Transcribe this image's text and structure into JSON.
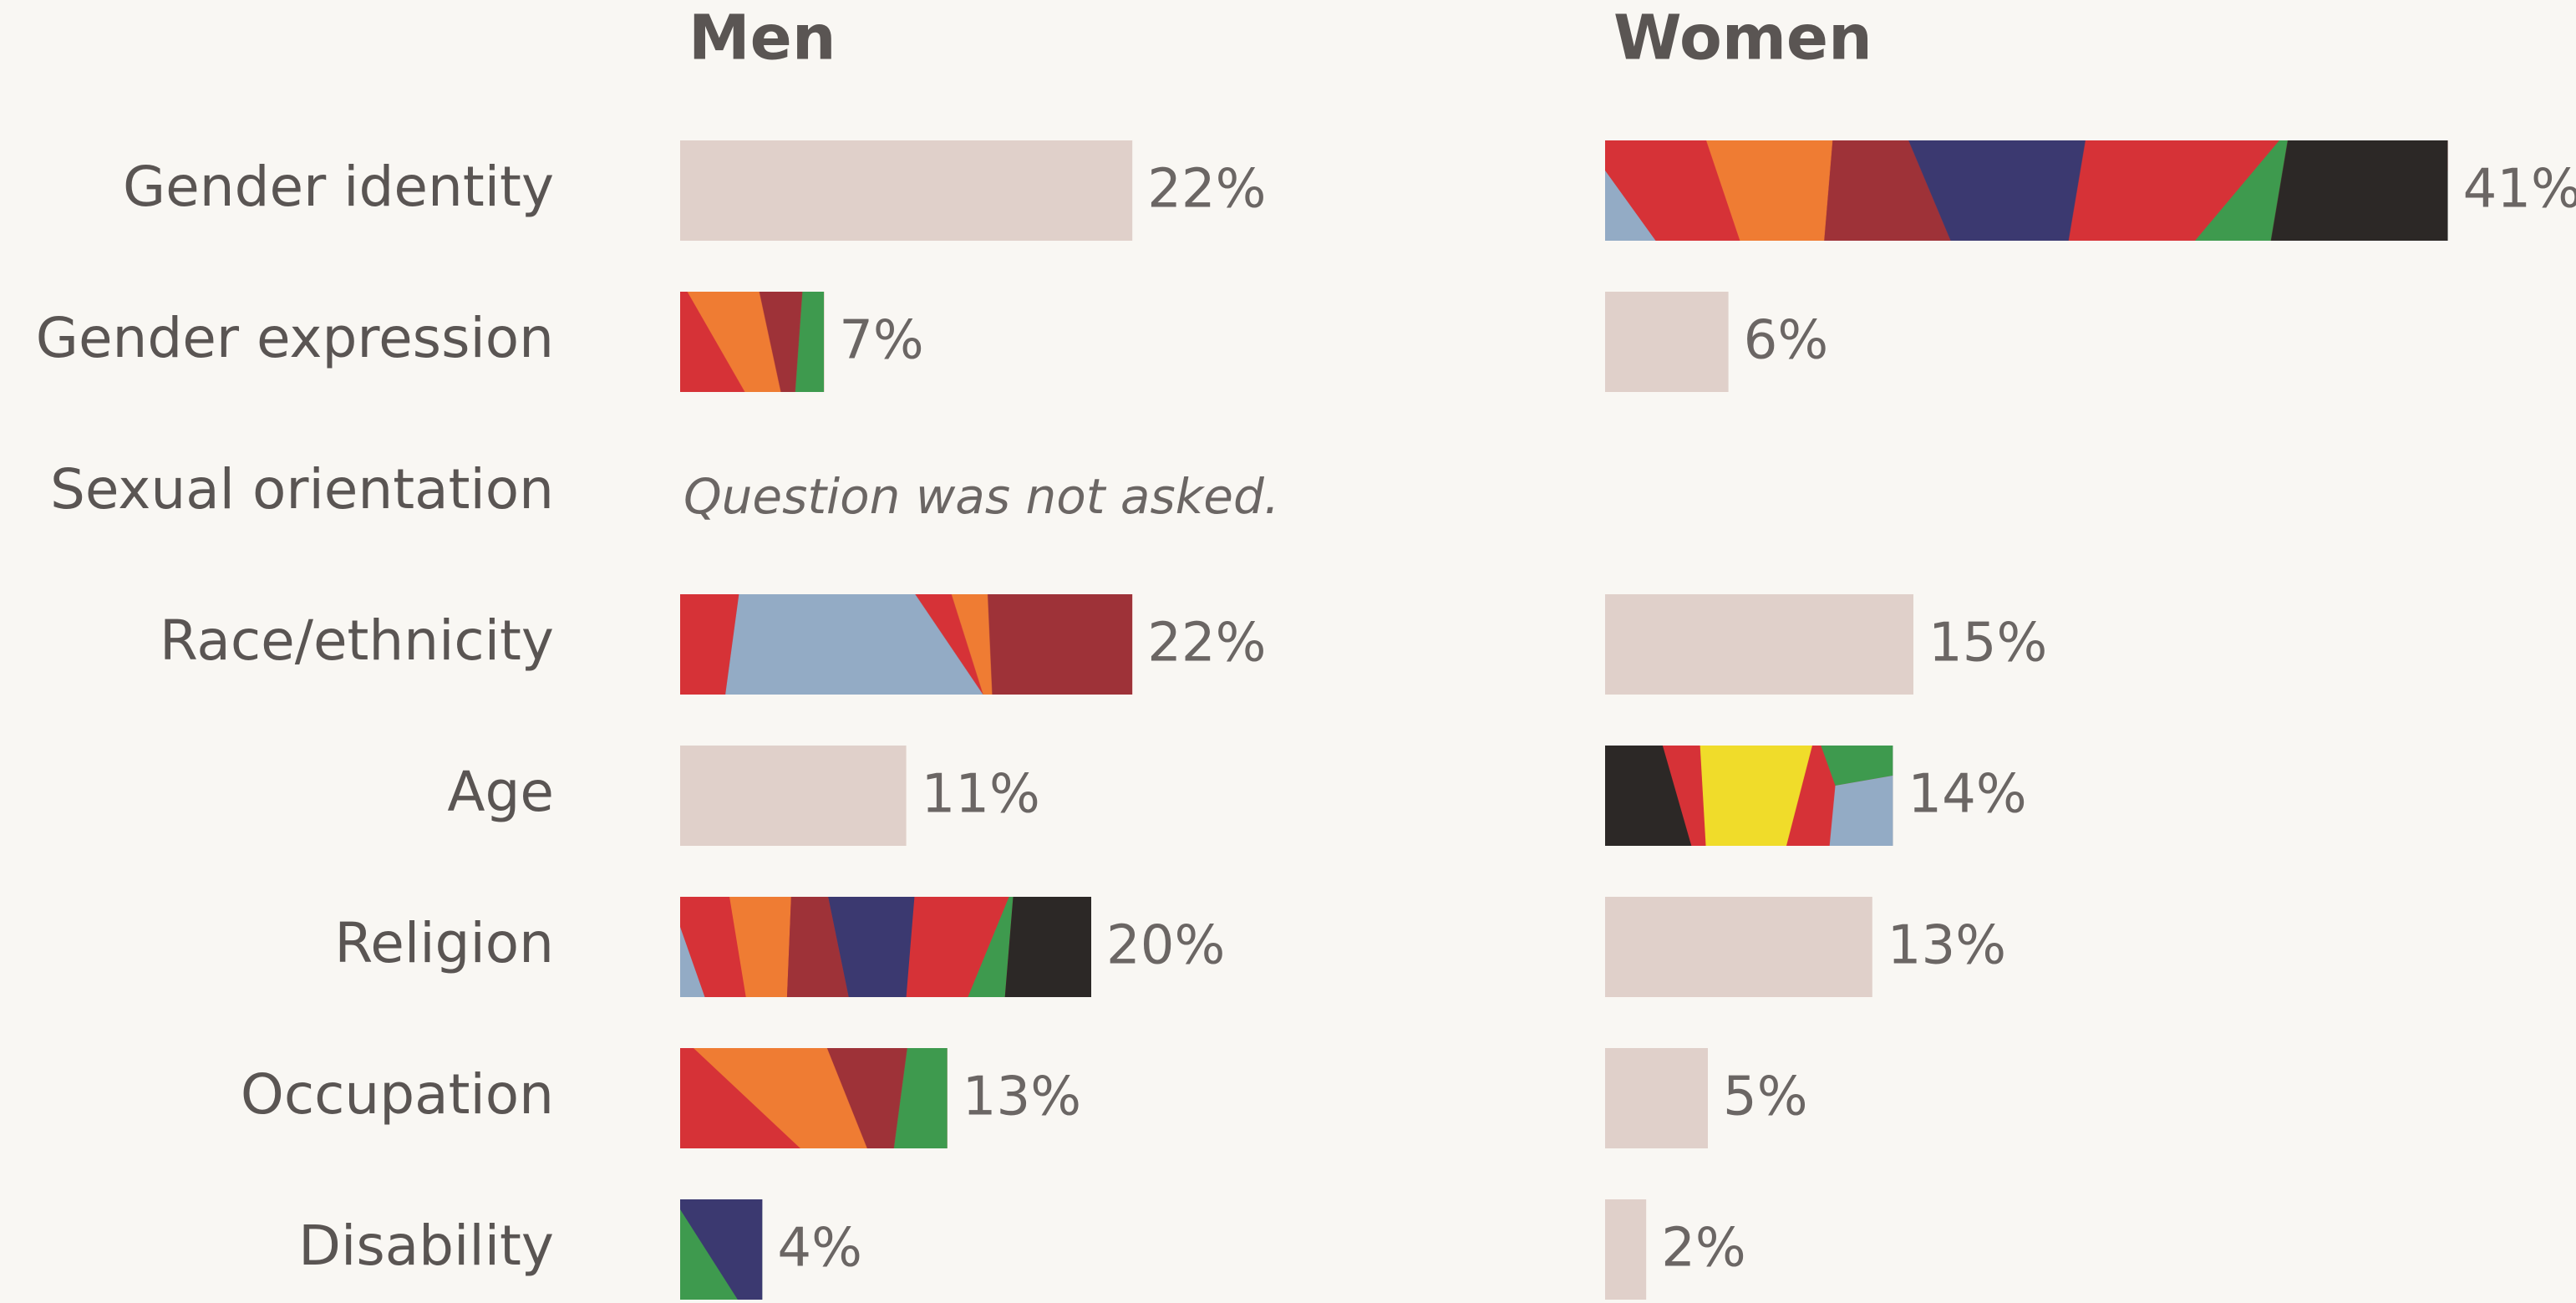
{
  "chart_data": {
    "type": "bar",
    "categories": [
      "Gender identity",
      "Gender expression",
      "Sexual orientation",
      "Race/ethnicity",
      "Age",
      "Religion",
      "Occupation",
      "Disability"
    ],
    "series": [
      {
        "name": "Men",
        "values": [
          22,
          7,
          null,
          22,
          11,
          20,
          13,
          4
        ],
        "value_labels": [
          "22%",
          "7%",
          null,
          "22%",
          "11%",
          "20%",
          "13%",
          "4%"
        ],
        "colors": [
          "#e0d0ca",
          "url(#mosaicA)",
          null,
          "url(#mosaicB)",
          "#e0d0ca",
          "url(#mosaicC)",
          "url(#mosaicA)",
          "url(#mosaicD)"
        ],
        "annotations": [
          null,
          null,
          "Question was not asked.",
          null,
          null,
          null,
          null,
          null
        ]
      },
      {
        "name": "Women",
        "values": [
          41,
          6,
          null,
          15,
          14,
          13,
          5,
          2
        ],
        "value_labels": [
          "41%",
          "6%",
          null,
          "15%",
          "14%",
          "13%",
          "5%",
          "2%"
        ],
        "colors": [
          "url(#mosaicC)",
          "#e0d0ca",
          null,
          "#e0d0ca",
          "url(#mosaicE)",
          "#e0d0ca",
          "#e0d0ca",
          "#e0d0ca"
        ]
      }
    ]
  }
}
